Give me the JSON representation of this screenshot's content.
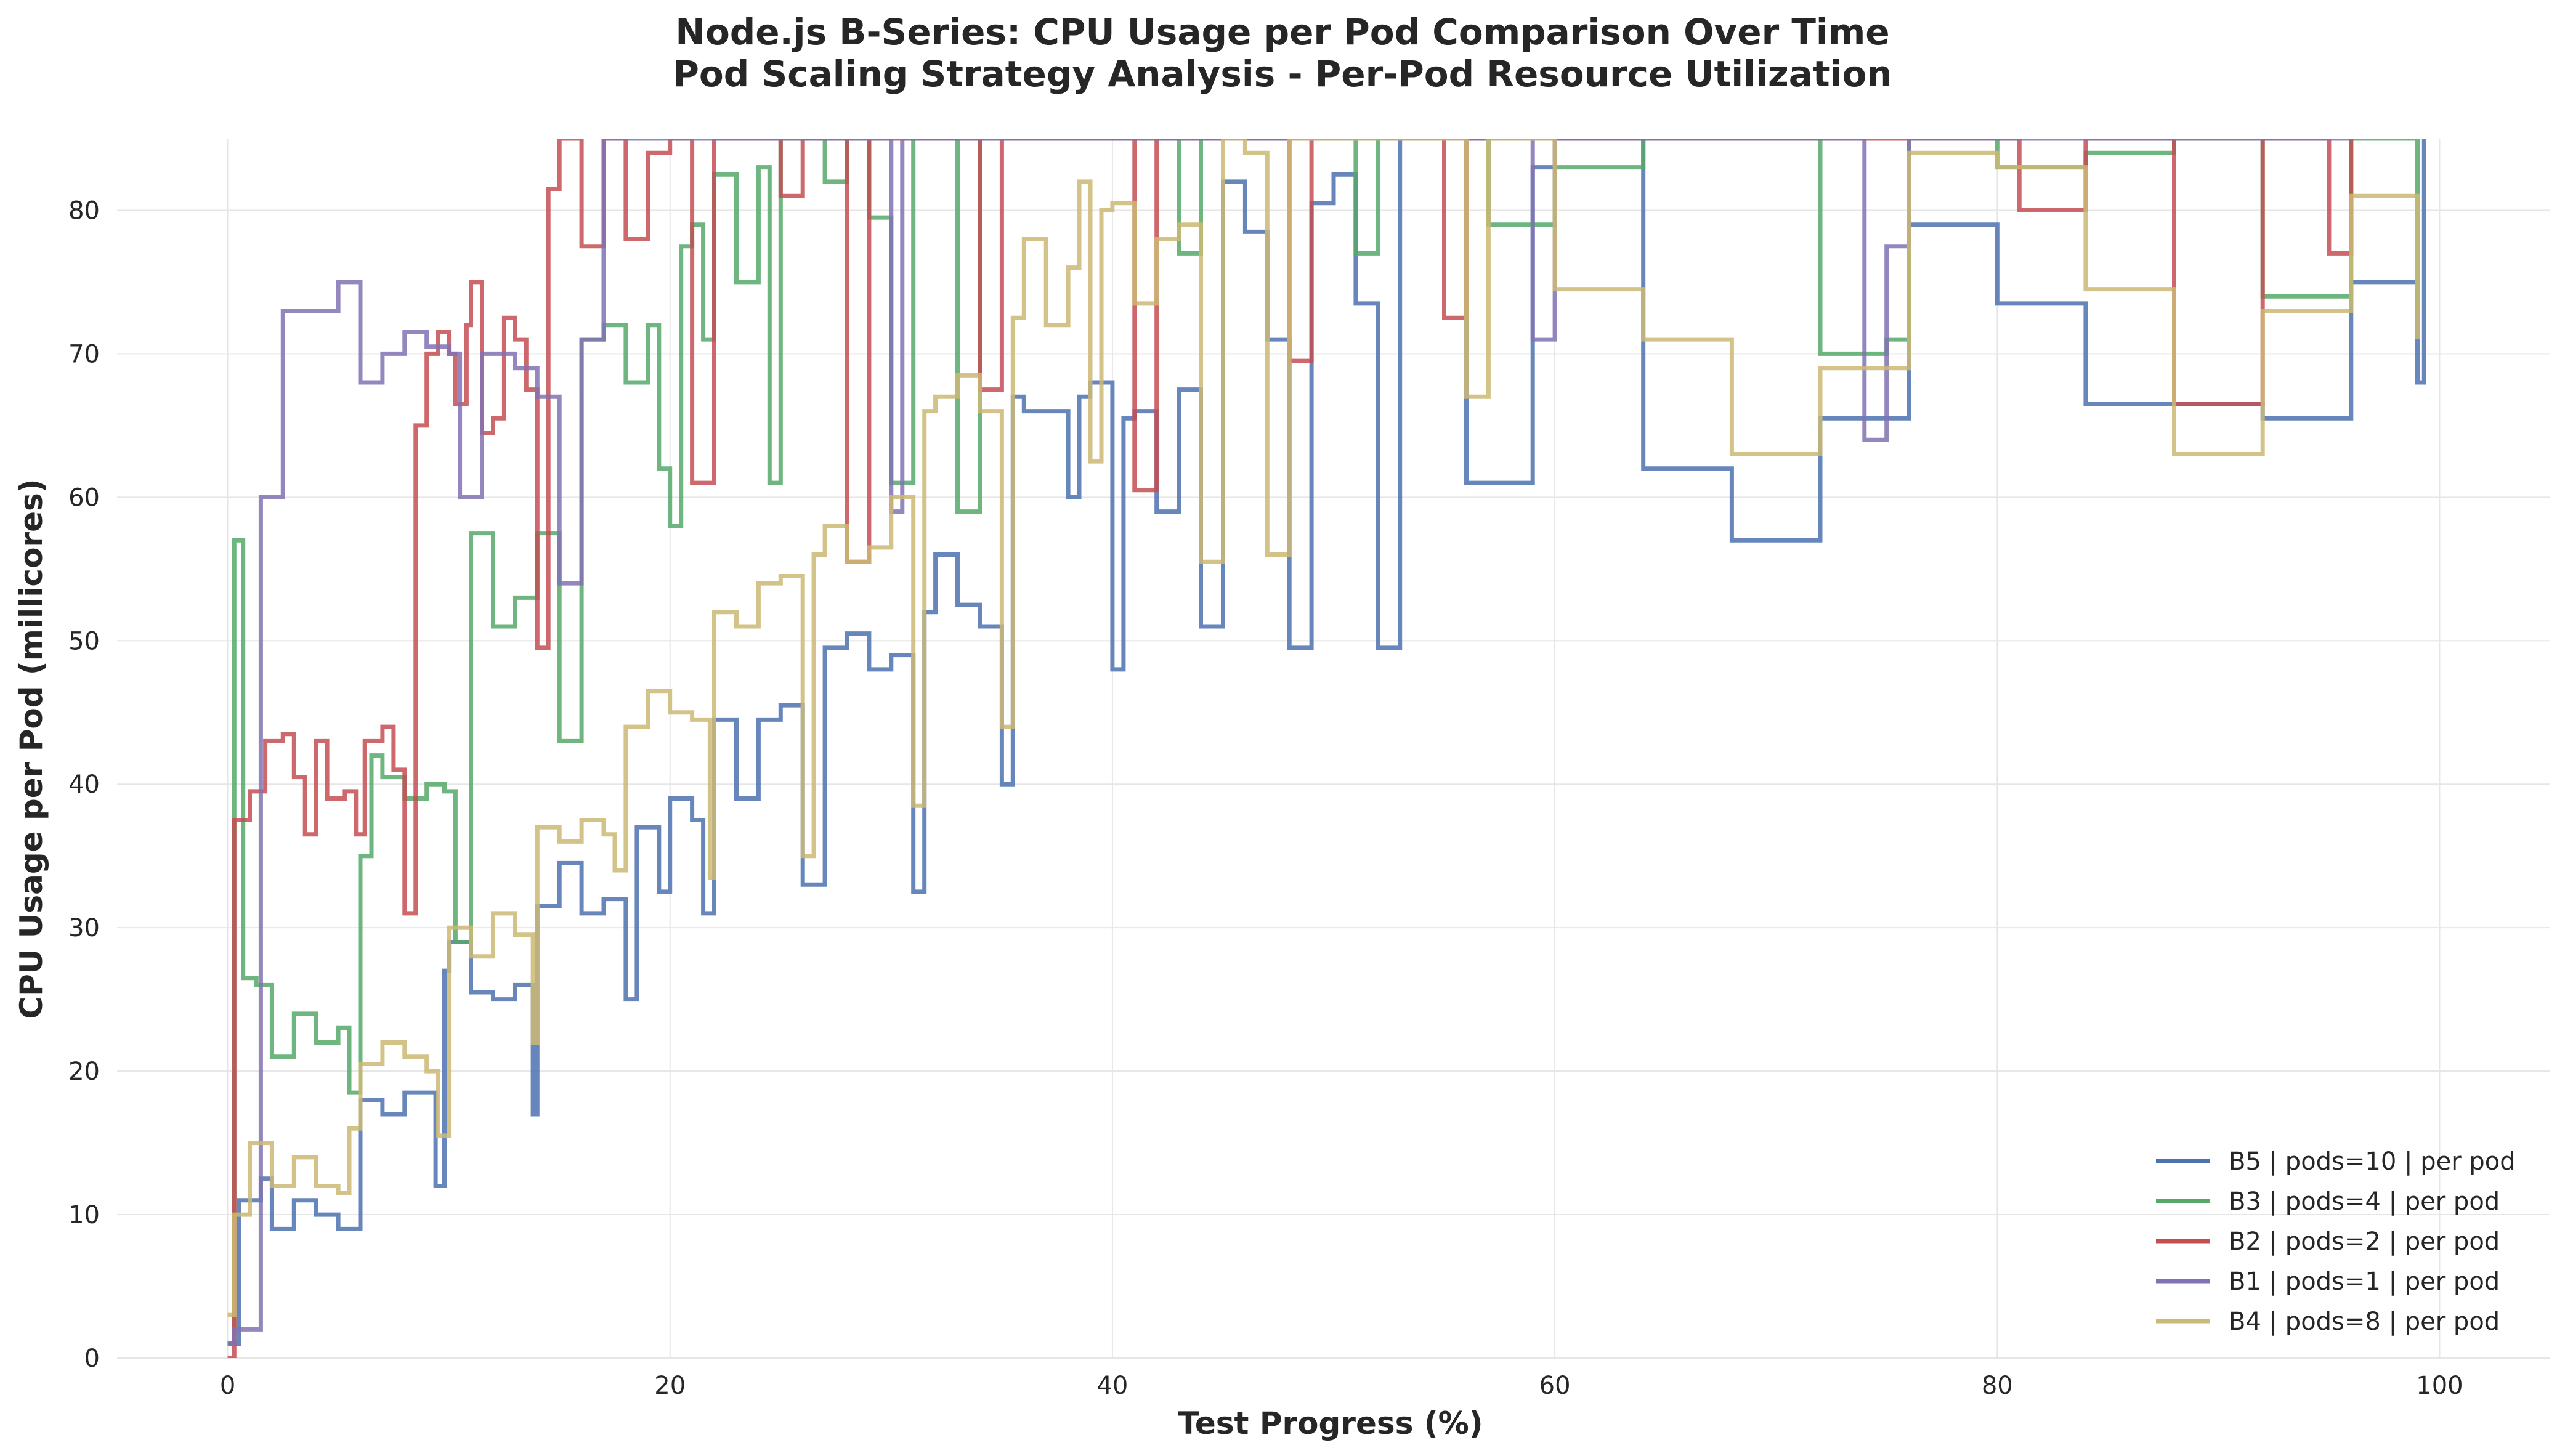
{
  "chart_data": {
    "type": "line",
    "title": "Node.js B-Series: CPU Usage per Pod Comparison Over Time",
    "subtitle": "Pod Scaling Strategy Analysis - Per-Pod Resource Utilization",
    "xlabel": "Test Progress (%)",
    "ylabel": "CPU Usage per Pod (millicores)",
    "xlim": [
      -5,
      105
    ],
    "ylim": [
      0,
      85
    ],
    "xticks": [
      0,
      20,
      40,
      60,
      80,
      100
    ],
    "yticks": [
      0,
      10,
      20,
      30,
      40,
      50,
      60,
      70,
      80
    ],
    "grid": true,
    "legend_position": "lower-right",
    "series": [
      {
        "name": "B5 | pods=10 | per pod",
        "color": "#4c72b0",
        "points": [
          [
            0,
            1
          ],
          [
            0.5,
            11
          ],
          [
            1.5,
            12.5
          ],
          [
            2,
            9
          ],
          [
            3,
            11
          ],
          [
            4,
            10
          ],
          [
            5,
            9
          ],
          [
            6,
            18
          ],
          [
            7,
            17
          ],
          [
            8,
            18.5
          ],
          [
            9,
            18.5
          ],
          [
            9.4,
            12
          ],
          [
            9.8,
            27
          ],
          [
            10,
            29
          ],
          [
            11,
            25.5
          ],
          [
            12,
            25
          ],
          [
            13,
            26
          ],
          [
            13.8,
            17
          ],
          [
            14,
            31.5
          ],
          [
            15,
            34.5
          ],
          [
            16,
            31
          ],
          [
            17,
            32
          ],
          [
            18,
            25
          ],
          [
            18.5,
            37
          ],
          [
            19,
            37
          ],
          [
            19.5,
            32.5
          ],
          [
            20,
            39
          ],
          [
            21,
            37.5
          ],
          [
            21.5,
            31
          ],
          [
            22,
            44.5
          ],
          [
            23,
            39
          ],
          [
            24,
            44.5
          ],
          [
            25,
            45.5
          ],
          [
            26,
            33
          ],
          [
            27,
            49.5
          ],
          [
            28,
            50.5
          ],
          [
            29,
            48
          ],
          [
            30,
            49
          ],
          [
            31,
            32.5
          ],
          [
            31.5,
            52
          ],
          [
            32,
            56
          ],
          [
            33,
            52.5
          ],
          [
            34,
            51
          ],
          [
            35,
            40
          ],
          [
            35.5,
            67
          ],
          [
            36,
            66
          ],
          [
            37,
            66
          ],
          [
            38,
            60
          ],
          [
            38.5,
            67
          ],
          [
            39,
            68
          ],
          [
            40,
            48
          ],
          [
            40.5,
            65.5
          ],
          [
            41,
            66
          ],
          [
            42,
            59
          ],
          [
            43,
            67.5
          ],
          [
            44,
            51
          ],
          [
            45,
            82
          ],
          [
            46,
            78.5
          ],
          [
            47,
            71
          ],
          [
            48,
            49.5
          ],
          [
            49,
            80.5
          ],
          [
            50,
            82.5
          ],
          [
            51,
            73.5
          ],
          [
            52,
            49.5
          ],
          [
            53,
            85
          ],
          [
            56,
            61
          ],
          [
            59,
            83
          ],
          [
            60,
            85
          ],
          [
            64,
            62
          ],
          [
            68,
            57
          ],
          [
            72,
            65.5
          ],
          [
            76,
            79
          ],
          [
            80,
            73.5
          ],
          [
            84,
            66.5
          ],
          [
            88,
            66.5
          ],
          [
            92,
            65.5
          ],
          [
            96,
            75
          ],
          [
            99,
            68
          ],
          [
            99.3,
            85
          ]
        ]
      },
      {
        "name": "B3 | pods=4 | per pod",
        "color": "#55a868",
        "points": [
          [
            0,
            1
          ],
          [
            0.3,
            57
          ],
          [
            0.7,
            26.5
          ],
          [
            1.3,
            26
          ],
          [
            2,
            21
          ],
          [
            3,
            24
          ],
          [
            4,
            22
          ],
          [
            5,
            23
          ],
          [
            5.5,
            18.5
          ],
          [
            6,
            35
          ],
          [
            6.5,
            42
          ],
          [
            7,
            40.5
          ],
          [
            8,
            39
          ],
          [
            9,
            40
          ],
          [
            9.8,
            39.5
          ],
          [
            10.3,
            29
          ],
          [
            11,
            57.5
          ],
          [
            12,
            51
          ],
          [
            13,
            53
          ],
          [
            14,
            57.5
          ],
          [
            15,
            43
          ],
          [
            16,
            71
          ],
          [
            17,
            72
          ],
          [
            18,
            68
          ],
          [
            19,
            72
          ],
          [
            19.5,
            62
          ],
          [
            20,
            58
          ],
          [
            20.5,
            77.5
          ],
          [
            21,
            79
          ],
          [
            21.5,
            71
          ],
          [
            22,
            82.5
          ],
          [
            23,
            75
          ],
          [
            24,
            83
          ],
          [
            24.5,
            61
          ],
          [
            25,
            85
          ],
          [
            27,
            82
          ],
          [
            28,
            85
          ],
          [
            29,
            79.5
          ],
          [
            30,
            61
          ],
          [
            31,
            85
          ],
          [
            33,
            59
          ],
          [
            34,
            85
          ],
          [
            38,
            85
          ],
          [
            40,
            85
          ],
          [
            43,
            77
          ],
          [
            44,
            85
          ],
          [
            48,
            85
          ],
          [
            51,
            77
          ],
          [
            52,
            85
          ],
          [
            56,
            85
          ],
          [
            57,
            79
          ],
          [
            60,
            83
          ],
          [
            64,
            85
          ],
          [
            68,
            85
          ],
          [
            72,
            70
          ],
          [
            75,
            71
          ],
          [
            76,
            85
          ],
          [
            80,
            83
          ],
          [
            84,
            84
          ],
          [
            88,
            85
          ],
          [
            92,
            74
          ],
          [
            96,
            85
          ],
          [
            99,
            73
          ]
        ]
      },
      {
        "name": "B2 | pods=2 | per pod",
        "color": "#c44e52",
        "points": [
          [
            0,
            0
          ],
          [
            0.3,
            37.5
          ],
          [
            1,
            39.5
          ],
          [
            1.7,
            43
          ],
          [
            2.5,
            43.5
          ],
          [
            3,
            40.5
          ],
          [
            3.5,
            36.5
          ],
          [
            4,
            43
          ],
          [
            4.5,
            39
          ],
          [
            5.3,
            39.5
          ],
          [
            5.8,
            36.5
          ],
          [
            6.2,
            43
          ],
          [
            7,
            44
          ],
          [
            7.5,
            41
          ],
          [
            8,
            31
          ],
          [
            8.5,
            65
          ],
          [
            9,
            70
          ],
          [
            9.5,
            71.5
          ],
          [
            10,
            70
          ],
          [
            10.3,
            66.5
          ],
          [
            10.8,
            72
          ],
          [
            11,
            75
          ],
          [
            11.5,
            64.5
          ],
          [
            12,
            65.5
          ],
          [
            12.5,
            72.5
          ],
          [
            13,
            71
          ],
          [
            13.5,
            67.5
          ],
          [
            14,
            49.5
          ],
          [
            14.5,
            81.5
          ],
          [
            15,
            85
          ],
          [
            16,
            77.5
          ],
          [
            17,
            85
          ],
          [
            18,
            78
          ],
          [
            19,
            84
          ],
          [
            20,
            85
          ],
          [
            21,
            61
          ],
          [
            22,
            85
          ],
          [
            24,
            85
          ],
          [
            25,
            81
          ],
          [
            26,
            85
          ],
          [
            28,
            55.5
          ],
          [
            29,
            85
          ],
          [
            30,
            85
          ],
          [
            34,
            67.5
          ],
          [
            35,
            85
          ],
          [
            40,
            85
          ],
          [
            41,
            60.5
          ],
          [
            42,
            85
          ],
          [
            47,
            85
          ],
          [
            48,
            69.5
          ],
          [
            49,
            85
          ],
          [
            55,
            72.5
          ],
          [
            56,
            85
          ],
          [
            60,
            85
          ],
          [
            64,
            85
          ],
          [
            68,
            85
          ],
          [
            72,
            85
          ],
          [
            76,
            85
          ],
          [
            81,
            80
          ],
          [
            84,
            85
          ],
          [
            88,
            66.5
          ],
          [
            92,
            85
          ],
          [
            95,
            77
          ],
          [
            96,
            85
          ]
        ]
      },
      {
        "name": "B1 | pods=1 | per pod",
        "color": "#8172b3",
        "points": [
          [
            0,
            1
          ],
          [
            0.3,
            2
          ],
          [
            1.5,
            60
          ],
          [
            2.5,
            73
          ],
          [
            4.5,
            73
          ],
          [
            5,
            75
          ],
          [
            6,
            68
          ],
          [
            7,
            70
          ],
          [
            8,
            71.5
          ],
          [
            9,
            70.5
          ],
          [
            10,
            70
          ],
          [
            10.5,
            60
          ],
          [
            11.5,
            70
          ],
          [
            13,
            69
          ],
          [
            14,
            67
          ],
          [
            15,
            54
          ],
          [
            16,
            71
          ],
          [
            17,
            85
          ],
          [
            18,
            85
          ],
          [
            30,
            59
          ],
          [
            30.5,
            85
          ],
          [
            31,
            85
          ],
          [
            44,
            85
          ],
          [
            59,
            71
          ],
          [
            60,
            85
          ],
          [
            70,
            85
          ],
          [
            74,
            64
          ],
          [
            75,
            77.5
          ],
          [
            76,
            85
          ],
          [
            80,
            85
          ],
          [
            86,
            85
          ],
          [
            92,
            85
          ],
          [
            96,
            85
          ]
        ]
      },
      {
        "name": "B4 | pods=8 | per pod",
        "color": "#ccb974",
        "points": [
          [
            0,
            3
          ],
          [
            0.3,
            10
          ],
          [
            1,
            15
          ],
          [
            2,
            12
          ],
          [
            3,
            14
          ],
          [
            4,
            12
          ],
          [
            5,
            11.5
          ],
          [
            5.5,
            16
          ],
          [
            6,
            20.5
          ],
          [
            7,
            22
          ],
          [
            8,
            21
          ],
          [
            9,
            20
          ],
          [
            9.5,
            15.5
          ],
          [
            10,
            30
          ],
          [
            11,
            28
          ],
          [
            12,
            31
          ],
          [
            13,
            29.5
          ],
          [
            13.8,
            22
          ],
          [
            14,
            37
          ],
          [
            15,
            36
          ],
          [
            16,
            37.5
          ],
          [
            17,
            36.5
          ],
          [
            17.5,
            34
          ],
          [
            18,
            44
          ],
          [
            19,
            46.5
          ],
          [
            20,
            45
          ],
          [
            21,
            44.5
          ],
          [
            21.8,
            33.5
          ],
          [
            22,
            52
          ],
          [
            23,
            51
          ],
          [
            24,
            54
          ],
          [
            25,
            54.5
          ],
          [
            26,
            35
          ],
          [
            26.5,
            56
          ],
          [
            27,
            58
          ],
          [
            28,
            55.5
          ],
          [
            29,
            56.5
          ],
          [
            30,
            60
          ],
          [
            31,
            38.5
          ],
          [
            31.5,
            66
          ],
          [
            32,
            67
          ],
          [
            33,
            68.5
          ],
          [
            34,
            66
          ],
          [
            35,
            44
          ],
          [
            35.5,
            72.5
          ],
          [
            36,
            78
          ],
          [
            37,
            72
          ],
          [
            38,
            76
          ],
          [
            38.5,
            82
          ],
          [
            39,
            62.5
          ],
          [
            39.5,
            80
          ],
          [
            40,
            80.5
          ],
          [
            41,
            73.5
          ],
          [
            42,
            78
          ],
          [
            43,
            79
          ],
          [
            44,
            55.5
          ],
          [
            45,
            85
          ],
          [
            46,
            84
          ],
          [
            47,
            56
          ],
          [
            48,
            85
          ],
          [
            50,
            85
          ],
          [
            52,
            85
          ],
          [
            56,
            67
          ],
          [
            57,
            85
          ],
          [
            60,
            74.5
          ],
          [
            64,
            71
          ],
          [
            68,
            63
          ],
          [
            72,
            69
          ],
          [
            76,
            84
          ],
          [
            80,
            83
          ],
          [
            84,
            74.5
          ],
          [
            88,
            63
          ],
          [
            92,
            73
          ],
          [
            96,
            81
          ],
          [
            99,
            71
          ]
        ]
      }
    ]
  }
}
